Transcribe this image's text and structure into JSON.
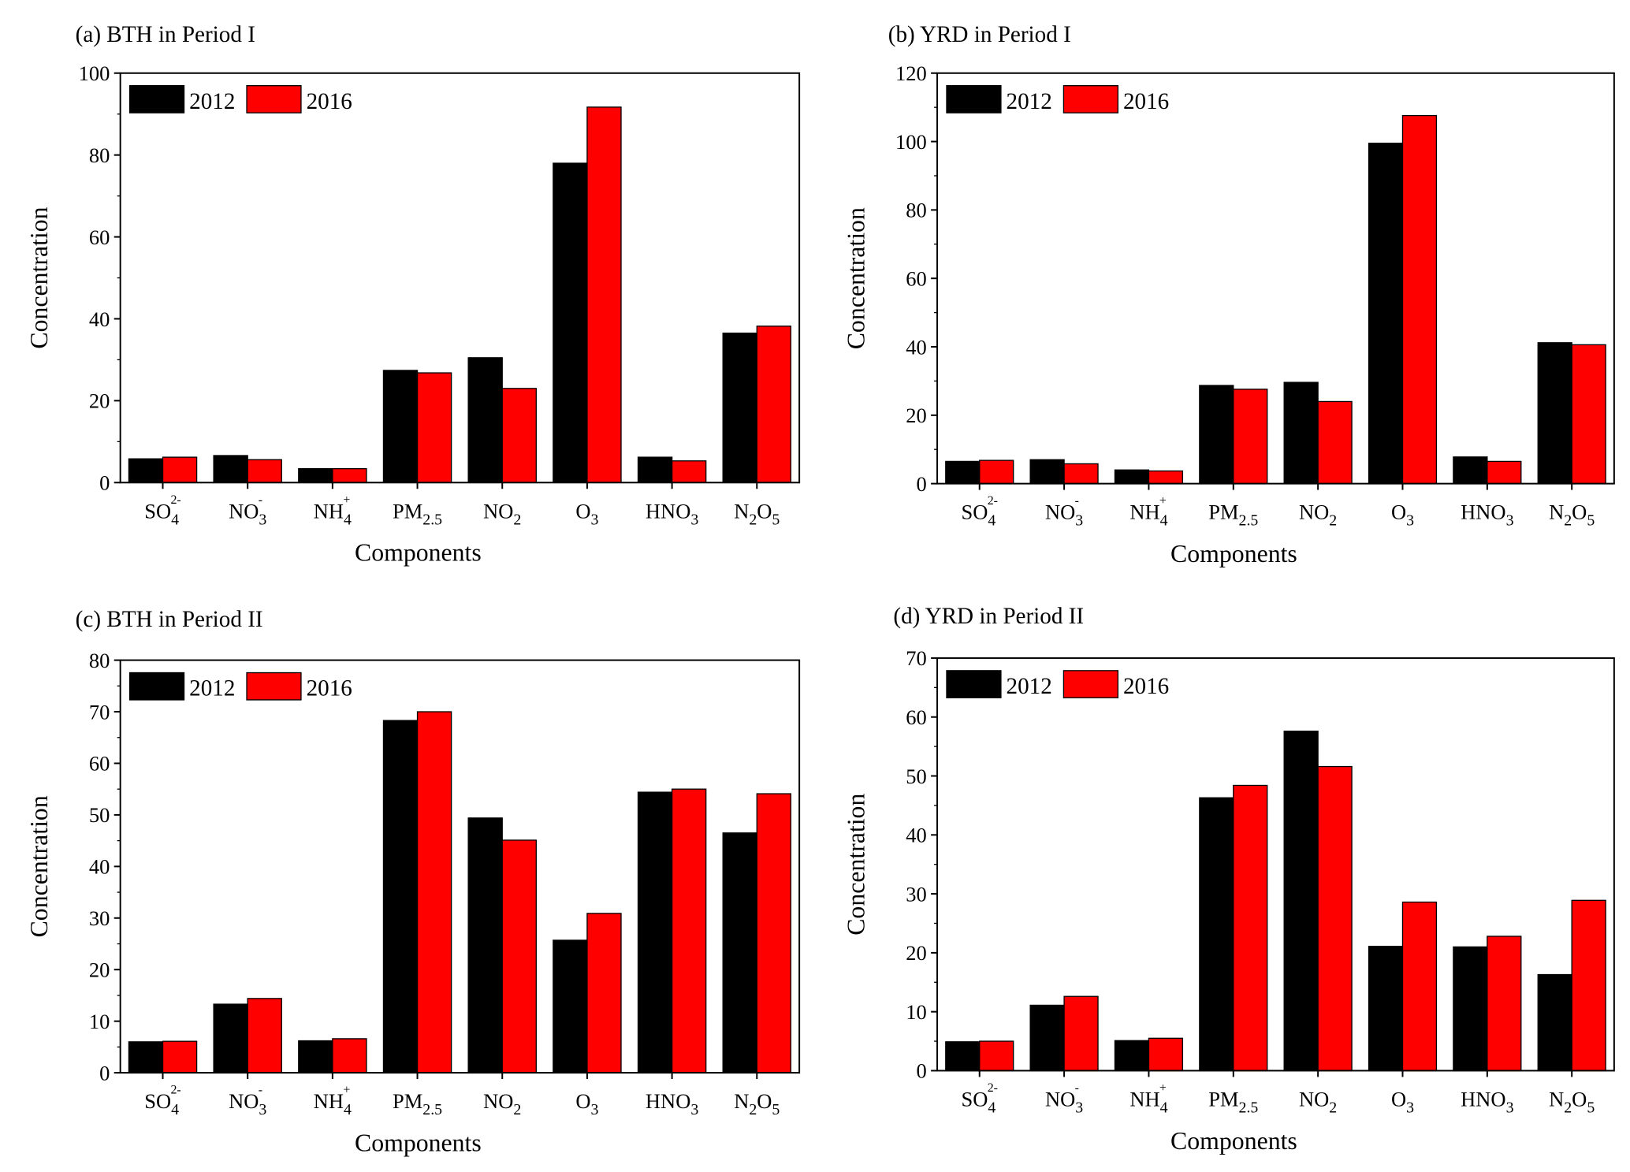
{
  "chart_data": [
    {
      "type": "bar",
      "title": "(a) BTH in Period I",
      "xlabel": "Components",
      "ylabel": "Concentration",
      "ylim": [
        0,
        100
      ],
      "yticks": [
        0,
        20,
        40,
        60,
        80,
        100
      ],
      "legend": "top-left",
      "categories": [
        {
          "base": "SO",
          "sub": "4",
          "sup": "2-"
        },
        {
          "base": "NO",
          "sub": "3",
          "sup": "-"
        },
        {
          "base": "NH",
          "sub": "4",
          "sup": "+"
        },
        {
          "base": "PM",
          "sub": "2.5",
          "sup": ""
        },
        {
          "base": "NO",
          "sub": "2",
          "sup": ""
        },
        {
          "base": "O",
          "sub": "3",
          "sup": ""
        },
        {
          "base": "HNO",
          "sub": "3",
          "sup": ""
        },
        {
          "base": "N",
          "sub": "2",
          "sup": "",
          "base2": "O",
          "sub2": "5"
        }
      ],
      "series": [
        {
          "name": "2012",
          "color": "#000000",
          "values": [
            5.8,
            6.6,
            3.4,
            27.4,
            30.5,
            78.0,
            6.2,
            36.5
          ]
        },
        {
          "name": "2016",
          "color": "#ff0000",
          "values": [
            6.2,
            5.6,
            3.4,
            26.8,
            23.0,
            91.7,
            5.3,
            38.2
          ]
        }
      ]
    },
    {
      "type": "bar",
      "title": "(b) YRD in Period I",
      "xlabel": "Components",
      "ylabel": "Concentration",
      "ylim": [
        0,
        120
      ],
      "yticks": [
        0,
        20,
        40,
        60,
        80,
        100,
        120
      ],
      "legend": "top-left",
      "categories": [
        {
          "base": "SO",
          "sub": "4",
          "sup": "2-"
        },
        {
          "base": "NO",
          "sub": "3",
          "sup": "-"
        },
        {
          "base": "NH",
          "sub": "4",
          "sup": "+"
        },
        {
          "base": "PM",
          "sub": "2.5",
          "sup": ""
        },
        {
          "base": "NO",
          "sub": "2",
          "sup": ""
        },
        {
          "base": "O",
          "sub": "3",
          "sup": ""
        },
        {
          "base": "HNO",
          "sub": "3",
          "sup": ""
        },
        {
          "base": "N",
          "sub": "2",
          "sup": "",
          "base2": "O",
          "sub2": "5"
        }
      ],
      "series": [
        {
          "name": "2012",
          "color": "#000000",
          "values": [
            6.5,
            7.0,
            4.0,
            28.7,
            29.6,
            99.5,
            7.8,
            41.2
          ]
        },
        {
          "name": "2016",
          "color": "#ff0000",
          "values": [
            6.8,
            5.8,
            3.7,
            27.6,
            24.0,
            107.6,
            6.5,
            40.6
          ]
        }
      ]
    },
    {
      "type": "bar",
      "title": "(c) BTH in Period II",
      "xlabel": "Components",
      "ylabel": "Concentration",
      "ylim": [
        0,
        80
      ],
      "yticks": [
        0,
        10,
        20,
        30,
        40,
        50,
        60,
        70,
        80
      ],
      "legend": "top-left",
      "categories": [
        {
          "base": "SO",
          "sub": "4",
          "sup": "2-"
        },
        {
          "base": "NO",
          "sub": "3",
          "sup": "-"
        },
        {
          "base": "NH",
          "sub": "4",
          "sup": "+"
        },
        {
          "base": "PM",
          "sub": "2.5",
          "sup": ""
        },
        {
          "base": "NO",
          "sub": "2",
          "sup": ""
        },
        {
          "base": "O",
          "sub": "3",
          "sup": ""
        },
        {
          "base": "HNO",
          "sub": "3",
          "sup": ""
        },
        {
          "base": "N",
          "sub": "2",
          "sup": "",
          "base2": "O",
          "sub2": "5"
        }
      ],
      "series": [
        {
          "name": "2012",
          "color": "#000000",
          "values": [
            6.0,
            13.3,
            6.2,
            68.3,
            49.4,
            25.7,
            54.4,
            46.5
          ]
        },
        {
          "name": "2016",
          "color": "#ff0000",
          "values": [
            6.1,
            14.4,
            6.6,
            70.0,
            45.1,
            30.9,
            55.0,
            54.1
          ]
        }
      ]
    },
    {
      "type": "bar",
      "title": "(d) YRD in Period II",
      "xlabel": "Components",
      "ylabel": "Concentration",
      "ylim": [
        0,
        70
      ],
      "yticks": [
        0,
        10,
        20,
        30,
        40,
        50,
        60,
        70
      ],
      "legend": "top-left",
      "categories": [
        {
          "base": "SO",
          "sub": "4",
          "sup": "2-"
        },
        {
          "base": "NO",
          "sub": "3",
          "sup": "-"
        },
        {
          "base": "NH",
          "sub": "4",
          "sup": "+"
        },
        {
          "base": "PM",
          "sub": "2.5",
          "sup": ""
        },
        {
          "base": "NO",
          "sub": "2",
          "sup": ""
        },
        {
          "base": "O",
          "sub": "3",
          "sup": ""
        },
        {
          "base": "HNO",
          "sub": "3",
          "sup": ""
        },
        {
          "base": "N",
          "sub": "2",
          "sup": "",
          "base2": "O",
          "sub2": "5"
        }
      ],
      "series": [
        {
          "name": "2012",
          "color": "#000000",
          "values": [
            4.9,
            11.1,
            5.1,
            46.3,
            57.6,
            21.1,
            21.0,
            16.3
          ]
        },
        {
          "name": "2016",
          "color": "#ff0000",
          "values": [
            5.0,
            12.6,
            5.5,
            48.4,
            51.6,
            28.6,
            22.8,
            28.9
          ]
        }
      ]
    }
  ]
}
